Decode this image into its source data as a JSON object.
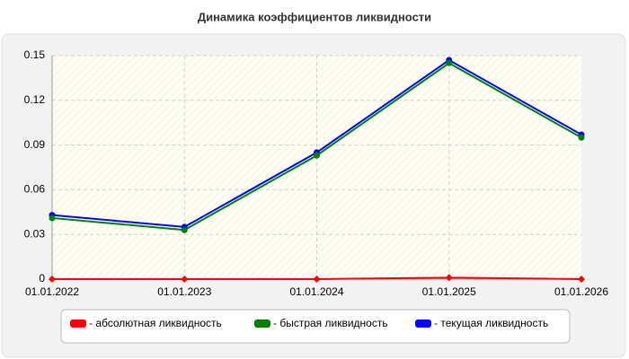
{
  "chart_data": {
    "type": "line",
    "title": "Динамика коэффициентов ликвидности",
    "categories": [
      "01.01.2022",
      "01.01.2023",
      "01.01.2024",
      "01.01.2025",
      "01.01.2026"
    ],
    "series": [
      {
        "name": "- абсолютная ликвидность",
        "color": "#ff0000",
        "marker": "diamond",
        "values": [
          0,
          0,
          0,
          0.001,
          0
        ]
      },
      {
        "name": "- быстрая ликвидность",
        "color": "#008000",
        "marker": "circle",
        "values": [
          0.041,
          0.033,
          0.083,
          0.145,
          0.095
        ]
      },
      {
        "name": "- текущая ликвидность",
        "color": "#0000ff",
        "marker": "circle",
        "values": [
          0.043,
          0.035,
          0.085,
          0.147,
          0.097
        ]
      }
    ],
    "ylim": [
      0,
      0.15
    ],
    "yticks": [
      0,
      0.03,
      0.06,
      0.09,
      0.12,
      0.15
    ],
    "grid": true,
    "legend": "bottom"
  }
}
